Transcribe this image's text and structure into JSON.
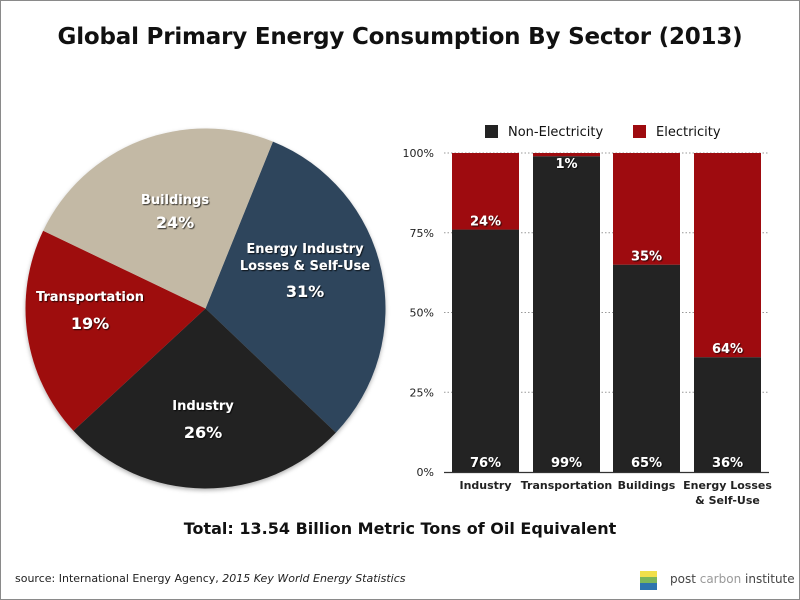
{
  "title": "Global Primary Energy Consumption By Sector (2013)",
  "total": "Total: 13.54 Billion Metric Tons of Oil Equivalent",
  "source": {
    "prefix": "source: International Energy Agency, ",
    "publication": "2015 Key World Energy Statistics"
  },
  "logo": {
    "icon": "post-carbon-grid-logo",
    "word1": "post ",
    "word2": "carbon",
    "word3": " institute",
    "colors": [
      "#f1e04b",
      "#7cb65a",
      "#2d74ad"
    ]
  },
  "colors": {
    "energy_industry": "#2e455c",
    "buildings": "#c3b9a5",
    "transportation": "#9e0b0f",
    "industry": "#232323",
    "non_electricity": "#232323",
    "electricity": "#9e0b0f"
  },
  "chart_data": [
    {
      "type": "pie",
      "title": "",
      "slices": [
        {
          "label": "Energy Industry Losses & Self-Use",
          "label_lines": [
            "Energy Industry",
            "Losses & Self-Use"
          ],
          "value": 31,
          "display": "31%",
          "color_key": "energy_industry"
        },
        {
          "label": "Industry",
          "label_lines": [
            "Industry"
          ],
          "value": 26,
          "display": "26%",
          "color_key": "industry"
        },
        {
          "label": "Transportation",
          "label_lines": [
            "Transportation"
          ],
          "value": 19,
          "display": "19%",
          "color_key": "transportation"
        },
        {
          "label": "Buildings",
          "label_lines": [
            "Buildings"
          ],
          "value": 24,
          "display": "24%",
          "color_key": "buildings"
        }
      ],
      "start_angle_deg": 22,
      "direction": "clockwise"
    },
    {
      "type": "bar",
      "stacked": true,
      "title": "",
      "categories": [
        "Industry",
        "Transportation",
        "Buildings",
        "Energy Losses & Self-Use"
      ],
      "category_lines": [
        [
          "Industry"
        ],
        [
          "Transportation"
        ],
        [
          "Buildings"
        ],
        [
          "Energy Losses",
          "& Self-Use"
        ]
      ],
      "series": [
        {
          "name": "Non-Electricity",
          "values": [
            76,
            99,
            65,
            36
          ],
          "labels": [
            "76%",
            "99%",
            "65%",
            "36%"
          ],
          "color_key": "non_electricity"
        },
        {
          "name": "Electricity",
          "values": [
            24,
            1,
            35,
            64
          ],
          "labels": [
            "24%",
            "1%",
            "35%",
            "64%"
          ],
          "color_key": "electricity"
        }
      ],
      "xlabel": "",
      "ylabel": "",
      "ylim": [
        0,
        100
      ],
      "yticks": [
        0,
        25,
        50,
        75,
        100
      ],
      "ytick_labels": [
        "0%",
        "25%",
        "50%",
        "75%",
        "100%"
      ],
      "grid": "dotted horizontal",
      "legend": "top"
    }
  ]
}
